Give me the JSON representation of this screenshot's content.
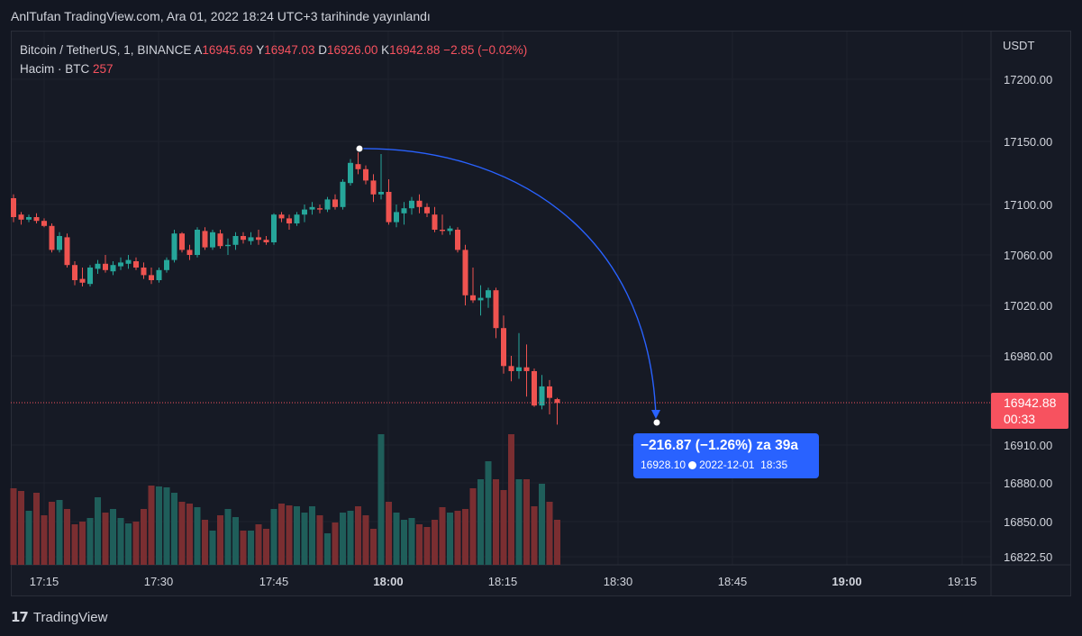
{
  "header": {
    "title": "AnlTufan TradingView.com, Ara 01, 2022 18:24 UTC+3 tarihinde yayınlandı"
  },
  "legend": {
    "symbol": "Bitcoin / TetherUS, 1, BINANCE",
    "a_label": "A",
    "a_value": "16945.69",
    "y_label": "Y",
    "y_value": "16947.03",
    "d_label": "D",
    "d_value": "16926.00",
    "k_label": "K",
    "k_value": "16942.88",
    "change": "−2.85 (−0.02%)",
    "volume_label": "Hacim · BTC",
    "volume_value": "257"
  },
  "price_axis": {
    "currency": "USDT",
    "current_price": "16942.88",
    "countdown": "00:33"
  },
  "measure": {
    "main": "−216.87 (−1.26%) za 39a",
    "price": "16928.10",
    "date": "2022-12-01",
    "time": "18:35"
  },
  "branding": {
    "logo": "17",
    "name": "TradingView"
  },
  "colors": {
    "up": "#26a69a",
    "down": "#ef5350",
    "up_volume": "#1f5e5a",
    "down_volume": "#7a2e31",
    "accent": "#2962ff",
    "background": "#131722"
  },
  "chart_data": {
    "type": "candlestick",
    "y_ticks": [
      17200,
      17150,
      17100,
      17060,
      17020,
      16980,
      16910,
      16880,
      16850,
      16822.5
    ],
    "y_tick_labels": [
      "17200.00",
      "17150.00",
      "17100.00",
      "17060.00",
      "17020.00",
      "16980.00",
      "16910.00",
      "16880.00",
      "16850.00",
      "16822.50"
    ],
    "x_ticks": [
      "17:15",
      "17:30",
      "17:45",
      "18:00",
      "18:15",
      "18:30",
      "18:45",
      "19:00",
      "19:15"
    ],
    "x_tick_bold": [
      false,
      false,
      false,
      true,
      false,
      false,
      false,
      true,
      false
    ],
    "ohlc": [
      [
        17105,
        17108,
        17086,
        17090
      ],
      [
        17092,
        17094,
        17084,
        17088
      ],
      [
        17088,
        17092,
        17086,
        17090
      ],
      [
        17090,
        17093,
        17085,
        17087
      ],
      [
        17087,
        17089,
        17082,
        17083
      ],
      [
        17083,
        17085,
        17062,
        17064
      ],
      [
        17064,
        17078,
        17062,
        17075
      ],
      [
        17074,
        17077,
        17050,
        17052
      ],
      [
        17052,
        17055,
        17036,
        17040
      ],
      [
        17041,
        17050,
        17035,
        17038
      ],
      [
        17037,
        17052,
        17035,
        17050
      ],
      [
        17049,
        17056,
        17045,
        17053
      ],
      [
        17053,
        17060,
        17046,
        17048
      ],
      [
        17047,
        17055,
        17044,
        17052
      ],
      [
        17051,
        17058,
        17048,
        17054
      ],
      [
        17053,
        17060,
        17049,
        17056
      ],
      [
        17055,
        17058,
        17048,
        17050
      ],
      [
        17050,
        17054,
        17041,
        17044
      ],
      [
        17044,
        17050,
        17037,
        17040
      ],
      [
        17040,
        17050,
        17038,
        17048
      ],
      [
        17048,
        17058,
        17046,
        17056
      ],
      [
        17056,
        17080,
        17054,
        17077
      ],
      [
        17077,
        17078,
        17062,
        17064
      ],
      [
        17064,
        17068,
        17056,
        17060
      ],
      [
        17060,
        17082,
        17058,
        17080
      ],
      [
        17079,
        17082,
        17064,
        17066
      ],
      [
        17066,
        17080,
        17064,
        17078
      ],
      [
        17077,
        17080,
        17065,
        17067
      ],
      [
        17067,
        17073,
        17060,
        17068
      ],
      [
        17068,
        17078,
        17064,
        17075
      ],
      [
        17075,
        17078,
        17069,
        17072
      ],
      [
        17071,
        17078,
        17068,
        17074
      ],
      [
        17074,
        17080,
        17068,
        17072
      ],
      [
        17072,
        17075,
        17068,
        17070
      ],
      [
        17070,
        17093,
        17068,
        17092
      ],
      [
        17092,
        17094,
        17086,
        17089
      ],
      [
        17089,
        17092,
        17080,
        17085
      ],
      [
        17085,
        17094,
        17083,
        17092
      ],
      [
        17092,
        17100,
        17086,
        17096
      ],
      [
        17096,
        17102,
        17092,
        17098
      ],
      [
        17097,
        17100,
        17093,
        17096
      ],
      [
        17096,
        17106,
        17094,
        17104
      ],
      [
        17104,
        17108,
        17096,
        17098
      ],
      [
        17098,
        17120,
        17096,
        17118
      ],
      [
        17117,
        17136,
        17115,
        17133
      ],
      [
        17132,
        17146,
        17124,
        17128
      ],
      [
        17128,
        17131,
        17116,
        17119
      ],
      [
        17119,
        17124,
        17102,
        17108
      ],
      [
        17108,
        17140,
        17104,
        17110
      ],
      [
        17110,
        17120,
        17084,
        17086
      ],
      [
        17086,
        17100,
        17082,
        17094
      ],
      [
        17093,
        17102,
        17084,
        17097
      ],
      [
        17097,
        17106,
        17092,
        17103
      ],
      [
        17103,
        17108,
        17093,
        17098
      ],
      [
        17098,
        17101,
        17090,
        17093
      ],
      [
        17092,
        17098,
        17078,
        17080
      ],
      [
        17080,
        17092,
        17076,
        17079
      ],
      [
        17079,
        17083,
        17076,
        17081
      ],
      [
        17080,
        17082,
        17062,
        17064
      ],
      [
        17064,
        17068,
        17020,
        17028
      ],
      [
        17028,
        17050,
        17022,
        17024
      ],
      [
        17024,
        17036,
        17012,
        17026
      ],
      [
        17026,
        17034,
        17018,
        17032
      ],
      [
        17032,
        17034,
        16994,
        17002
      ],
      [
        17002,
        17012,
        16966,
        16972
      ],
      [
        16972,
        16980,
        16960,
        16968
      ],
      [
        16968,
        16998,
        16962,
        16971
      ],
      [
        16971,
        16989,
        16948,
        16968
      ],
      [
        16968,
        16970,
        16940,
        16941
      ],
      [
        16941,
        16965,
        16938,
        16956
      ],
      [
        16956,
        16961,
        16934,
        16947
      ],
      [
        16946,
        16947,
        16926,
        16943
      ]
    ],
    "volume": [
      85,
      82,
      60,
      80,
      55,
      70,
      72,
      62,
      45,
      48,
      52,
      75,
      58,
      62,
      52,
      46,
      48,
      62,
      88,
      87,
      86,
      80,
      70,
      68,
      64,
      50,
      38,
      55,
      62,
      53,
      38,
      38,
      45,
      40,
      62,
      68,
      66,
      65,
      58,
      65,
      55,
      35,
      47,
      58,
      60,
      65,
      55,
      40,
      145,
      70,
      58,
      50,
      52,
      45,
      42,
      50,
      64,
      58,
      60,
      62,
      85,
      95,
      115,
      95,
      83,
      145,
      95,
      95,
      65,
      90,
      70,
      50
    ],
    "series": [
      {
        "name": "Hacim · BTC"
      }
    ]
  }
}
